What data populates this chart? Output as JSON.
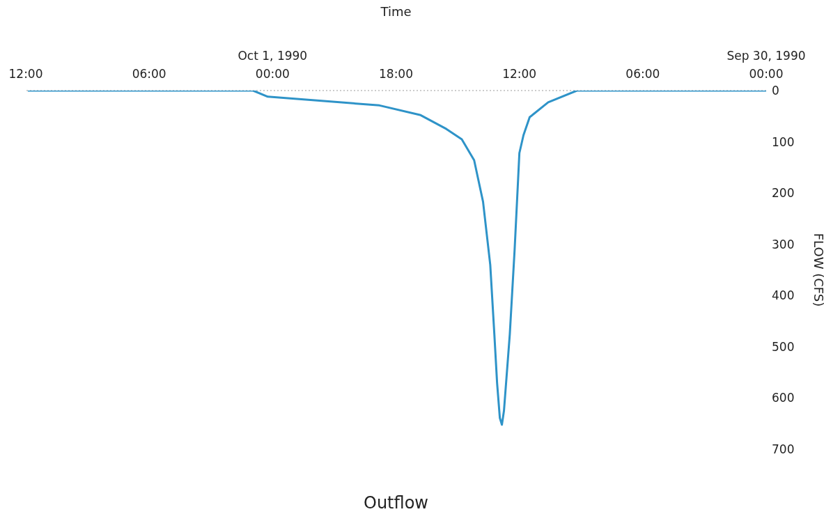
{
  "chart_data": {
    "type": "line",
    "title": "Outflow",
    "xlabel": "Time",
    "ylabel": "FLOW (CFS)",
    "x": [
      "1990-09-30T00:00",
      "1990-09-30T09:12",
      "1990-09-30T10:36",
      "1990-09-30T11:30",
      "1990-09-30T11:48",
      "1990-09-30T12:00",
      "1990-09-30T12:04",
      "1990-09-30T12:14",
      "1990-09-30T12:28",
      "1990-09-30T12:45",
      "1990-09-30T12:51",
      "1990-09-30T12:57",
      "1990-09-30T13:05",
      "1990-09-30T13:13",
      "1990-09-30T13:25",
      "1990-09-30T13:46",
      "1990-09-30T14:12",
      "1990-09-30T14:48",
      "1990-09-30T15:33",
      "1990-09-30T16:48",
      "1990-09-30T18:48",
      "1990-10-01T00:14",
      "1990-10-01T00:57",
      "1990-10-01T01:54",
      "1990-10-01T11:54"
    ],
    "series": [
      {
        "color": "#2e93c8",
        "values": [
          0,
          0,
          23,
          52,
          87,
          122,
          177,
          312,
          476,
          625,
          652,
          639,
          571,
          476,
          340,
          217,
          136,
          95,
          75,
          48,
          29,
          12,
          0,
          0,
          0
        ]
      }
    ],
    "xlim": [
      "1990-10-01T12:00",
      "1990-09-30T00:00"
    ],
    "xticks": [
      {
        "value": "1990-09-30T00:00",
        "label": "Sep 30, 1990\n00:00"
      },
      {
        "value": "1990-09-30T06:00",
        "label": "06:00"
      },
      {
        "value": "1990-09-30T12:00",
        "label": "12:00"
      },
      {
        "value": "1990-09-30T18:00",
        "label": "18:00"
      },
      {
        "value": "1990-10-01T00:00",
        "label": "Oct 1, 1990\n00:00"
      },
      {
        "value": "1990-10-01T06:00",
        "label": "06:00"
      },
      {
        "value": "1990-10-01T12:00",
        "label": "12:00"
      }
    ],
    "ylim": [
      700,
      0
    ],
    "yticks": [
      0,
      100,
      200,
      300,
      400,
      500,
      600,
      700
    ],
    "ref_lines": [
      {
        "axis": "y",
        "value": 0,
        "label": null,
        "color": "#999999",
        "line_style": "dotted"
      }
    ],
    "grid": false,
    "legend": false,
    "marker": "none",
    "line_style": "solid"
  }
}
